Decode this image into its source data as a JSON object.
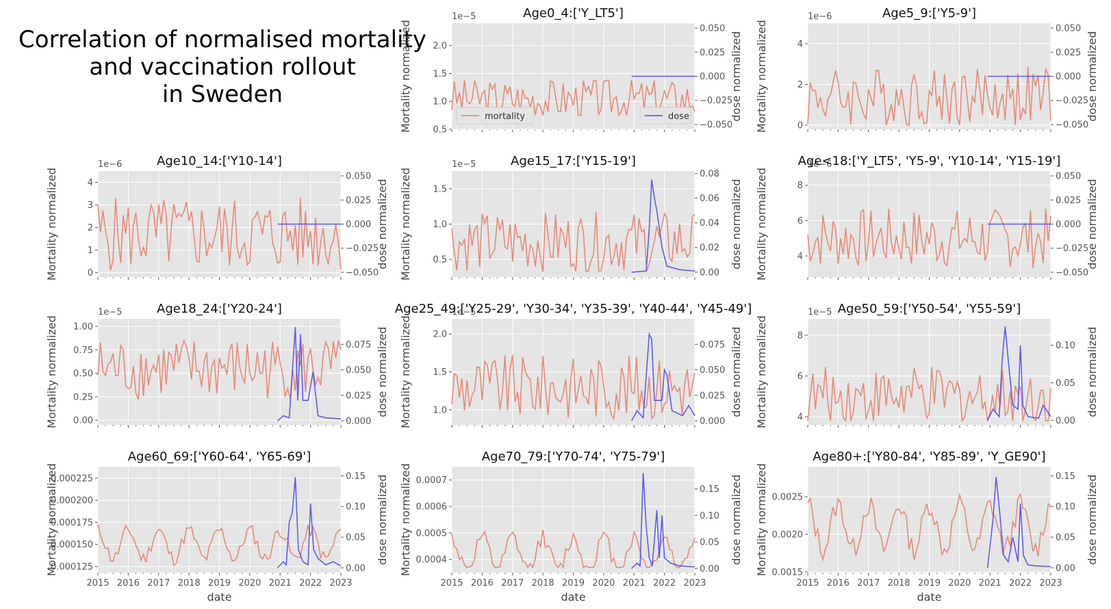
{
  "figure": {
    "title_lines": [
      "Correlation of normalised mortality",
      "and vaccination rollout",
      "in Sweden"
    ],
    "x_label": "date",
    "y_left_label": "Mortality normalized",
    "y_right_label": "dose normalized",
    "x_ticks": [
      "2015",
      "2016",
      "2017",
      "2018",
      "2019",
      "2020",
      "2021",
      "2022",
      "2023"
    ],
    "colors": {
      "mortality": "#E5806B",
      "dose": "#4D4DEB",
      "panel_bg": "#E5E5E5",
      "grid": "#FFFFFF"
    },
    "legend": {
      "mortality": "mortality",
      "dose": "dose"
    }
  },
  "chart_data": [
    {
      "type": "line",
      "title": "Age0_4:['Y_LT5']",
      "xlabel": "",
      "ylabel": "Mortality normalized",
      "y2label": "dose normalized",
      "xlim": [
        2015,
        2023
      ],
      "ylim": [
        0.5,
        2.4
      ],
      "yticks": [
        "0.5",
        "1.0",
        "1.5",
        "2.0"
      ],
      "y_offset": "1e−5",
      "y2lim": [
        -0.055,
        0.055
      ],
      "y2ticks": [
        "−0.050",
        "−0.025",
        "0.000",
        "0.025",
        "0.050"
      ],
      "legend": [
        "mortality",
        "dose"
      ],
      "mortality_range": [
        0.75,
        1.55
      ],
      "mortality_mean": 1.05,
      "dose_flat": 0.0
    },
    {
      "type": "line",
      "title": "Age5_9:['Y5-9']",
      "xlabel": "",
      "ylabel": "Mortality normalized",
      "y2label": "dose normalized",
      "xlim": [
        2015,
        2023
      ],
      "ylim": [
        -0.2,
        5.0
      ],
      "yticks": [
        "0",
        "2",
        "4"
      ],
      "y_offset": "1e−6",
      "y2lim": [
        -0.055,
        0.055
      ],
      "y2ticks": [
        "−0.050",
        "−0.025",
        "0.000",
        "0.025",
        "0.050"
      ],
      "mortality_range": [
        0,
        3.3
      ],
      "mortality_mean": 1.4,
      "dose_flat": 0.0
    },
    {
      "type": "line",
      "title": "Age10_14:['Y10-14']",
      "xlabel": "",
      "ylabel": "Mortality normalized",
      "y2label": "dose normalized",
      "xlim": [
        2015,
        2023
      ],
      "ylim": [
        -0.2,
        4.5
      ],
      "yticks": [
        "0",
        "1",
        "2",
        "3",
        "4"
      ],
      "y_offset": "1e−6",
      "y2lim": [
        -0.055,
        0.055
      ],
      "y2ticks": [
        "−0.050",
        "−0.025",
        "0.000",
        "0.025",
        "0.050"
      ],
      "mortality_range": [
        0,
        3.7
      ],
      "mortality_mean": 1.7,
      "dose_flat": 0.0
    },
    {
      "type": "line",
      "title": "Age15_17:['Y15-19']",
      "xlabel": "",
      "ylabel": "Mortality normalized",
      "y2label": "dose normalized",
      "xlim": [
        2015,
        2023
      ],
      "ylim": [
        0.25,
        1.75
      ],
      "yticks": [
        "0.5",
        "1.0",
        "1.5"
      ],
      "y_offset": "1e−5",
      "y2lim": [
        -0.004,
        0.082
      ],
      "y2ticks": [
        "0.00",
        "0.02",
        "0.04",
        "0.06",
        "0.08"
      ],
      "mortality_range": [
        0.3,
        1.25
      ],
      "mortality_mean": 0.75,
      "dose": [
        [
          2020.92,
          0.0
        ],
        [
          2021.4,
          0.001
        ],
        [
          2021.5,
          0.035
        ],
        [
          2021.58,
          0.075
        ],
        [
          2021.67,
          0.06
        ],
        [
          2021.75,
          0.05
        ],
        [
          2021.92,
          0.02
        ],
        [
          2022.08,
          0.005
        ],
        [
          2022.5,
          0.002
        ],
        [
          2023,
          0.001
        ]
      ]
    },
    {
      "type": "line",
      "title": "Age<18:['Y_LT5', 'Y5-9', 'Y10-14', 'Y15-19']",
      "xlabel": "",
      "ylabel": "Mortality normalized",
      "y2label": "dose normalized",
      "xlim": [
        2015,
        2023
      ],
      "ylim": [
        2.8,
        8.8
      ],
      "yticks": [
        "4",
        "6",
        "8"
      ],
      "y_offset": "1e−6",
      "y2lim": [
        -0.055,
        0.055
      ],
      "y2ticks": [
        "−0.050",
        "−0.025",
        "0.000",
        "0.025",
        "0.050"
      ],
      "mortality_range": [
        3.2,
        7.0
      ],
      "mortality_mean": 5.0,
      "dose_flat": 0.0
    },
    {
      "type": "line",
      "title": "Age18_24:['Y20-24']",
      "xlabel": "",
      "ylabel": "Mortality normalized",
      "y2label": "dose normalized",
      "xlim": [
        2015,
        2023
      ],
      "ylim": [
        -0.05,
        1.08
      ],
      "yticks": [
        "0.00",
        "0.25",
        "0.50",
        "0.75",
        "1.00"
      ],
      "y_offset": "1e−5",
      "y2lim": [
        -0.004,
        0.1
      ],
      "y2ticks": [
        "0.000",
        "0.025",
        "0.050",
        "0.075"
      ],
      "mortality_range": [
        0.1,
        0.85
      ],
      "mortality_mean": 0.55,
      "dose": [
        [
          2020.92,
          0.0
        ],
        [
          2021.1,
          0.005
        ],
        [
          2021.3,
          0.003
        ],
        [
          2021.5,
          0.092
        ],
        [
          2021.58,
          0.02
        ],
        [
          2021.67,
          0.085
        ],
        [
          2021.75,
          0.02
        ],
        [
          2021.92,
          0.02
        ],
        [
          2022.08,
          0.048
        ],
        [
          2022.25,
          0.005
        ],
        [
          2022.5,
          0.003
        ],
        [
          2023,
          0.002
        ]
      ]
    },
    {
      "type": "line",
      "title": "Age25_49:['Y25-29', 'Y30-34', 'Y35-39', 'Y40-44', 'Y45-49']",
      "xlabel": "",
      "ylabel": "Mortality normalized",
      "y2label": "dose normalized",
      "xlim": [
        2015,
        2023
      ],
      "ylim": [
        0.8,
        2.2
      ],
      "yticks": [
        "1.0",
        "1.5",
        "2.0"
      ],
      "y_offset": "1e−5",
      "y2lim": [
        -0.004,
        0.1
      ],
      "y2ticks": [
        "0.000",
        "0.025",
        "0.050",
        "0.075"
      ],
      "mortality_range": [
        0.85,
        1.8
      ],
      "mortality_mean": 1.3,
      "dose": [
        [
          2020.92,
          0.0
        ],
        [
          2021.1,
          0.01
        ],
        [
          2021.3,
          0.003
        ],
        [
          2021.5,
          0.085
        ],
        [
          2021.58,
          0.08
        ],
        [
          2021.67,
          0.02
        ],
        [
          2021.92,
          0.02
        ],
        [
          2022.0,
          0.05
        ],
        [
          2022.08,
          0.045
        ],
        [
          2022.25,
          0.01
        ],
        [
          2022.6,
          0.005
        ],
        [
          2022.8,
          0.015
        ],
        [
          2023,
          0.005
        ]
      ]
    },
    {
      "type": "line",
      "title": "Age50_59:['Y50-54', 'Y55-59']",
      "xlabel": "",
      "ylabel": "Mortality normalized",
      "y2label": "dose normalized",
      "xlim": [
        2015,
        2023
      ],
      "ylim": [
        3.6,
        8.8
      ],
      "yticks": [
        "4",
        "6",
        "8"
      ],
      "y_offset": "1e−5",
      "y2lim": [
        -0.006,
        0.135
      ],
      "y2ticks": [
        "0.00",
        "0.05",
        "0.10"
      ],
      "mortality_range": [
        3.8,
        7.0
      ],
      "mortality_mean": 5.0,
      "dose": [
        [
          2020.92,
          0.0
        ],
        [
          2021.1,
          0.015
        ],
        [
          2021.3,
          0.005
        ],
        [
          2021.4,
          0.08
        ],
        [
          2021.5,
          0.125
        ],
        [
          2021.6,
          0.08
        ],
        [
          2021.75,
          0.02
        ],
        [
          2021.92,
          0.015
        ],
        [
          2022.0,
          0.1
        ],
        [
          2022.08,
          0.02
        ],
        [
          2022.25,
          0.005
        ],
        [
          2022.6,
          0.003
        ],
        [
          2022.75,
          0.02
        ],
        [
          2022.92,
          0.01
        ],
        [
          2023,
          0.005
        ]
      ]
    },
    {
      "type": "line",
      "title": "Age60_69:['Y60-64', 'Y65-69']",
      "xlabel": "date",
      "ylabel": "Mortality normalized",
      "y2label": "dose normalized",
      "xlim": [
        2015,
        2023
      ],
      "ylim": [
        0.000118,
        0.000238
      ],
      "yticks": [
        "0.000125",
        "0.000150",
        "0.000175",
        "0.000200",
        "0.000225"
      ],
      "y2lim": [
        -0.008,
        0.165
      ],
      "y2ticks": [
        "0.00",
        "0.05",
        "0.10",
        "0.15"
      ],
      "mortality_range": [
        0.000125,
        0.00019
      ],
      "mortality_mean": 0.00015,
      "dose": [
        [
          2020.92,
          0.0
        ],
        [
          2021.1,
          0.01
        ],
        [
          2021.2,
          0.005
        ],
        [
          2021.3,
          0.075
        ],
        [
          2021.4,
          0.09
        ],
        [
          2021.5,
          0.148
        ],
        [
          2021.6,
          0.03
        ],
        [
          2021.75,
          0.01
        ],
        [
          2021.92,
          0.005
        ],
        [
          2022.0,
          0.105
        ],
        [
          2022.1,
          0.03
        ],
        [
          2022.25,
          0.015
        ],
        [
          2022.5,
          0.005
        ],
        [
          2022.75,
          0.01
        ],
        [
          2023,
          0.003
        ]
      ]
    },
    {
      "type": "line",
      "title": "Age70_79:['Y70-74', 'Y75-79']",
      "xlabel": "date",
      "ylabel": "Mortality normalized",
      "y2label": "dose normalized",
      "xlim": [
        2015,
        2023
      ],
      "ylim": [
        0.00035,
        0.00075
      ],
      "yticks": [
        "0.0004",
        "0.0005",
        "0.0006",
        "0.0007"
      ],
      "y2lim": [
        -0.008,
        0.192
      ],
      "y2ticks": [
        "0.00",
        "0.05",
        "0.10",
        "0.15"
      ],
      "mortality_range": [
        0.00037,
        0.00062
      ],
      "mortality_mean": 0.00042,
      "dose": [
        [
          2020.92,
          0.0
        ],
        [
          2021.1,
          0.01
        ],
        [
          2021.2,
          0.005
        ],
        [
          2021.3,
          0.18
        ],
        [
          2021.4,
          0.08
        ],
        [
          2021.5,
          0.02
        ],
        [
          2021.6,
          0.005
        ],
        [
          2021.75,
          0.11
        ],
        [
          2021.83,
          0.02
        ],
        [
          2021.92,
          0.1
        ],
        [
          2022.0,
          0.02
        ],
        [
          2022.2,
          0.01
        ],
        [
          2022.5,
          0.005
        ],
        [
          2023,
          0.003
        ]
      ]
    },
    {
      "type": "line",
      "title": "Age80+:['Y80-84', 'Y85-89', 'Y_GE90']",
      "xlabel": "date",
      "ylabel": "Mortality normalized",
      "y2label": "dose normalized",
      "xlim": [
        2015,
        2023
      ],
      "ylim": [
        0.00149,
        0.0029
      ],
      "yticks": [
        "0.0015",
        "0.0020",
        "0.0025"
      ],
      "y2lim": [
        -0.008,
        0.165
      ],
      "y2ticks": [
        "0.00",
        "0.05",
        "0.10",
        "0.15"
      ],
      "mortality_range": [
        0.0016,
        0.0028
      ],
      "mortality_mean": 0.0021,
      "dose": [
        [
          2020.92,
          0.0
        ],
        [
          2021.1,
          0.08
        ],
        [
          2021.2,
          0.148
        ],
        [
          2021.3,
          0.1
        ],
        [
          2021.45,
          0.02
        ],
        [
          2021.6,
          0.01
        ],
        [
          2021.75,
          0.05
        ],
        [
          2021.92,
          0.01
        ],
        [
          2022.0,
          0.105
        ],
        [
          2022.1,
          0.02
        ],
        [
          2022.25,
          0.005
        ],
        [
          2022.5,
          0.003
        ],
        [
          2023,
          0.002
        ]
      ]
    }
  ]
}
